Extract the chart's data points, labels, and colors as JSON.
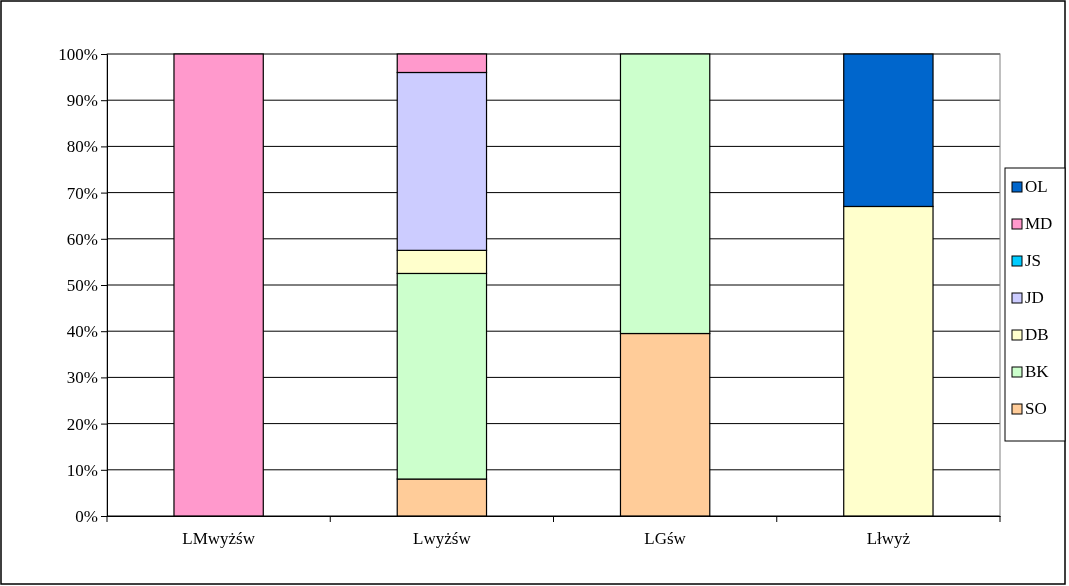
{
  "chart_data": {
    "type": "bar",
    "stacked": true,
    "categories": [
      "LMwyżśw",
      "Lwyżśw",
      "LGśw",
      "Lłwyż"
    ],
    "series": [
      {
        "name": "SO",
        "color": "#ffcc99",
        "values": [
          0,
          8,
          39.5,
          0
        ]
      },
      {
        "name": "BK",
        "color": "#ccffcc",
        "values": [
          0,
          44.5,
          60.5,
          0
        ]
      },
      {
        "name": "DB",
        "color": "#ffffcc",
        "values": [
          0,
          5,
          0,
          67
        ]
      },
      {
        "name": "JD",
        "color": "#ccccff",
        "values": [
          0,
          38.5,
          0,
          0
        ]
      },
      {
        "name": "JS",
        "color": "#00ccff",
        "values": [
          0,
          0,
          0,
          0
        ]
      },
      {
        "name": "MD",
        "color": "#ff99cc",
        "values": [
          100,
          4,
          0,
          0
        ]
      },
      {
        "name": "OL",
        "color": "#0066cc",
        "values": [
          0,
          0,
          0,
          33
        ]
      }
    ],
    "ylim": [
      0,
      100
    ],
    "yticks": [
      {
        "value": 0,
        "label": "0%"
      },
      {
        "value": 10,
        "label": "10%"
      },
      {
        "value": 20,
        "label": "20%"
      },
      {
        "value": 30,
        "label": "30%"
      },
      {
        "value": 40,
        "label": "40%"
      },
      {
        "value": 50,
        "label": "50%"
      },
      {
        "value": 60,
        "label": "60%"
      },
      {
        "value": 70,
        "label": "70%"
      },
      {
        "value": 80,
        "label": "80%"
      },
      {
        "value": 90,
        "label": "90%"
      },
      {
        "value": 100,
        "label": "100%"
      }
    ],
    "grid": "y",
    "legend": "right"
  }
}
